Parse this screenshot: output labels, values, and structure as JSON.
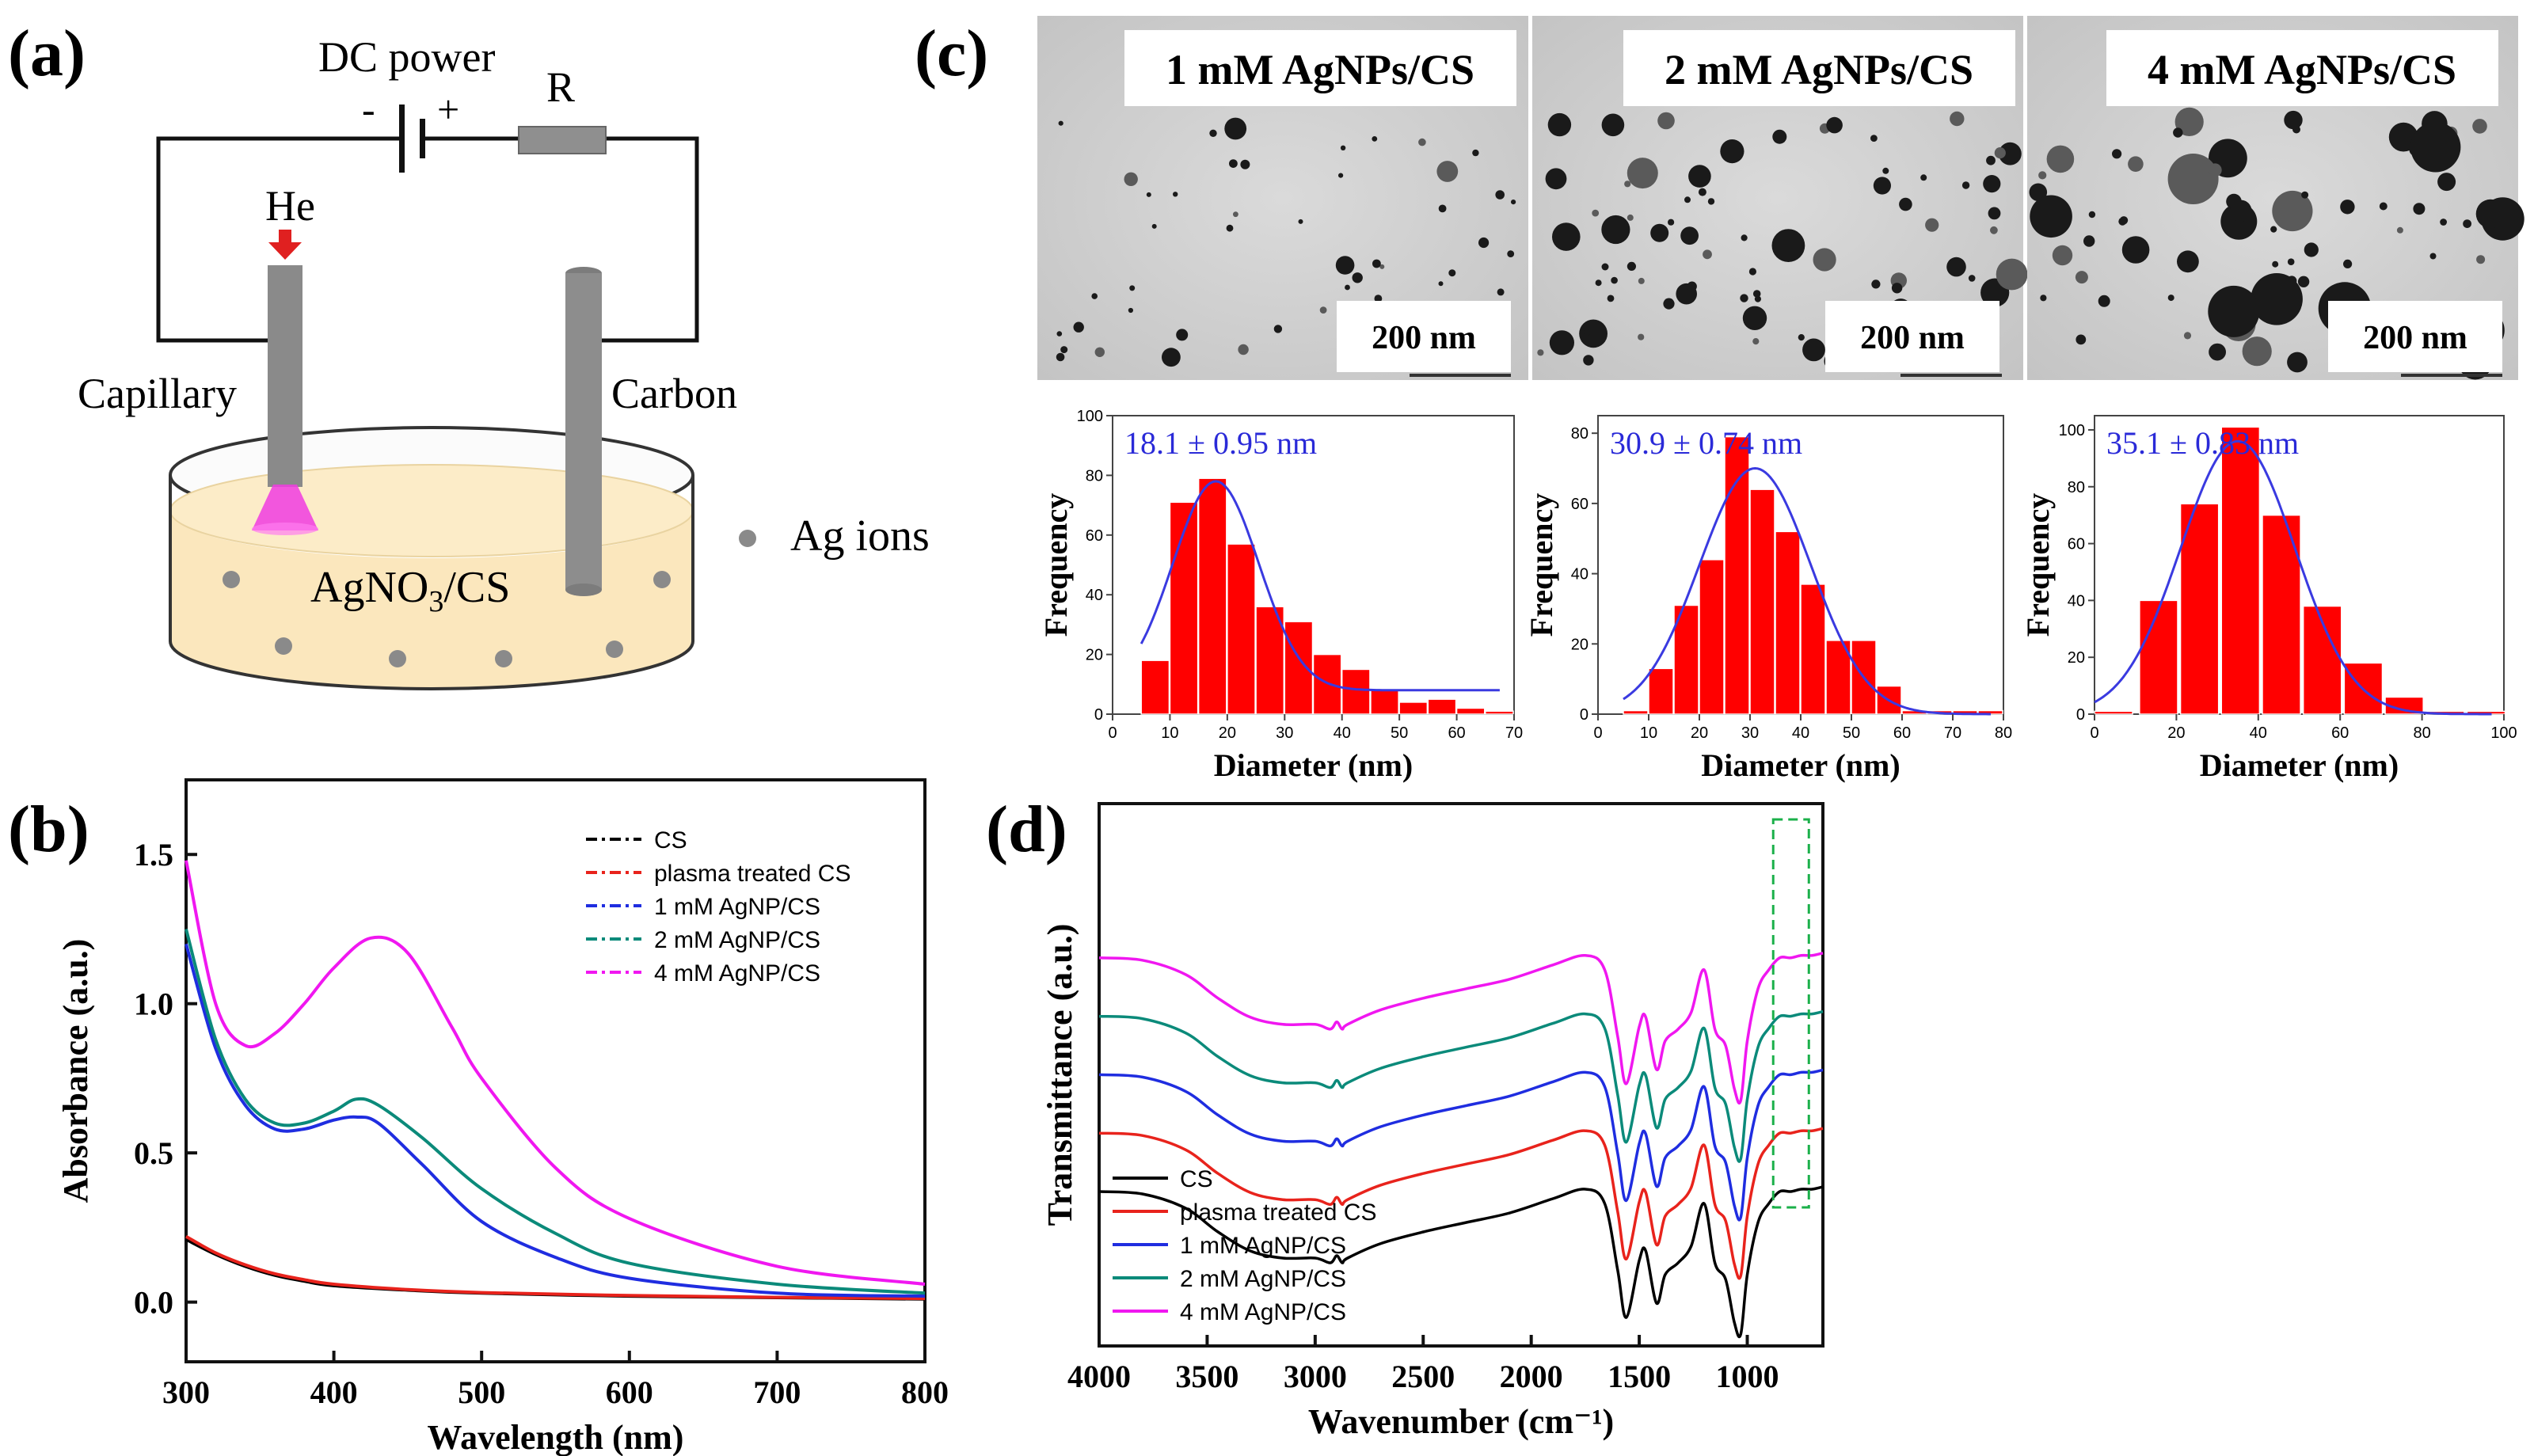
{
  "panels": {
    "a": {
      "label": "(a)",
      "dc_power": "DC power",
      "minus": "-",
      "plus": "+",
      "resistor": "R",
      "gas": "He",
      "capillary": "Capillary",
      "carbon": "Carbon",
      "solution_main": "AgNO",
      "solution_sub": "3",
      "solution_tail": "/CS",
      "ag_ions": "Ag ions"
    },
    "b": {
      "label": "(b)"
    },
    "c": {
      "label": "(c)",
      "tem": [
        {
          "title": "1 mM AgNPs/CS",
          "scale": "200 nm"
        },
        {
          "title": "2 mM AgNPs/CS",
          "scale": "200 nm"
        },
        {
          "title": "4 mM AgNPs/CS",
          "scale": "200 nm"
        }
      ]
    },
    "d": {
      "label": "(d)"
    }
  },
  "colors": {
    "cs": "#000000",
    "plasma": "#e8231c",
    "one_mm": "#1f2de0",
    "two_mm": "#0b8a7a",
    "four_mm": "#f017f0",
    "bar": "#ff0000",
    "fit": "#3a3ae0",
    "box": "#1bb04a",
    "stat": "#2a2ad8"
  },
  "chart_data": [
    {
      "id": "uvvis",
      "type": "line",
      "xlabel": "Wavelength (nm)",
      "ylabel": "Absorbance (a.u.)",
      "xlim": [
        300,
        800
      ],
      "ylim": [
        -0.2,
        1.75
      ],
      "xticks": [
        "300",
        "400",
        "500",
        "600",
        "700",
        "800"
      ],
      "yticks": [
        "0.0",
        "0.5",
        "1.0",
        "1.5"
      ],
      "legend": "top-right",
      "series": [
        {
          "name": "CS",
          "color_key": "cs",
          "x": [
            300,
            320,
            340,
            360,
            380,
            400,
            450,
            500,
            600,
            700,
            800
          ],
          "y": [
            0.21,
            0.16,
            0.12,
            0.09,
            0.07,
            0.055,
            0.04,
            0.03,
            0.02,
            0.015,
            0.01
          ]
        },
        {
          "name": "plasma treated CS",
          "color_key": "plasma",
          "x": [
            300,
            320,
            340,
            360,
            380,
            400,
            450,
            500,
            600,
            700,
            800
          ],
          "y": [
            0.22,
            0.165,
            0.125,
            0.095,
            0.075,
            0.06,
            0.042,
            0.032,
            0.022,
            0.016,
            0.012
          ]
        },
        {
          "name": "1 mM AgNP/CS",
          "color_key": "one_mm",
          "x": [
            300,
            320,
            340,
            360,
            380,
            400,
            415,
            430,
            460,
            500,
            550,
            600,
            700,
            800
          ],
          "y": [
            1.2,
            0.85,
            0.66,
            0.58,
            0.58,
            0.61,
            0.62,
            0.6,
            0.46,
            0.27,
            0.15,
            0.08,
            0.03,
            0.02
          ]
        },
        {
          "name": "2 mM AgNP/CS",
          "color_key": "two_mm",
          "x": [
            300,
            320,
            340,
            360,
            380,
            400,
            415,
            430,
            460,
            500,
            550,
            600,
            700,
            800
          ],
          "y": [
            1.25,
            0.88,
            0.68,
            0.6,
            0.6,
            0.64,
            0.68,
            0.66,
            0.55,
            0.38,
            0.23,
            0.13,
            0.06,
            0.03
          ]
        },
        {
          "name": "4 mM AgNP/CS",
          "color_key": "four_mm",
          "x": [
            300,
            320,
            340,
            360,
            380,
            400,
            425,
            450,
            480,
            500,
            550,
            600,
            700,
            800
          ],
          "y": [
            1.48,
            1.0,
            0.86,
            0.9,
            1.0,
            1.12,
            1.22,
            1.17,
            0.92,
            0.75,
            0.45,
            0.28,
            0.12,
            0.06
          ]
        }
      ]
    },
    {
      "id": "hist-1mm",
      "type": "bar",
      "stat": "18.1 ± 0.95 nm",
      "xlabel": "Diameter (nm)",
      "ylabel": "Frequency",
      "xlim": [
        0,
        70
      ],
      "ylim": [
        0,
        100
      ],
      "xticks": [
        "0",
        "10",
        "20",
        "30",
        "40",
        "50",
        "60",
        "70"
      ],
      "yticks": [
        "0",
        "20",
        "40",
        "60",
        "80",
        "100"
      ],
      "bin_width": 5,
      "bin_starts": [
        5,
        10,
        15,
        20,
        25,
        30,
        35,
        40,
        45,
        50,
        55,
        60,
        65
      ],
      "values": [
        18,
        71,
        79,
        57,
        36,
        31,
        20,
        15,
        8,
        4,
        5,
        2,
        1
      ],
      "fit_mean": 18,
      "fit_peak": 78,
      "fit_sigma": 7.5,
      "fit_baseline": 8
    },
    {
      "id": "hist-2mm",
      "type": "bar",
      "stat": "30.9 ± 0.74 nm",
      "xlabel": "Diameter (nm)",
      "ylabel": "Frequency",
      "xlim": [
        0,
        80
      ],
      "ylim": [
        0,
        85
      ],
      "xticks": [
        "0",
        "10",
        "20",
        "30",
        "40",
        "50",
        "60",
        "70",
        "80"
      ],
      "yticks": [
        "0",
        "20",
        "40",
        "60",
        "80"
      ],
      "bin_width": 5,
      "bin_starts": [
        5,
        10,
        15,
        20,
        25,
        30,
        35,
        40,
        45,
        50,
        55,
        60,
        65,
        70,
        75
      ],
      "values": [
        1,
        13,
        31,
        44,
        79,
        64,
        52,
        37,
        21,
        21,
        8,
        1,
        1,
        1,
        1
      ],
      "fit_mean": 31,
      "fit_peak": 70,
      "fit_sigma": 11,
      "fit_baseline": 0
    },
    {
      "id": "hist-4mm",
      "type": "bar",
      "stat": "35.1 ± 0.83 nm",
      "xlabel": "Diameter (nm)",
      "ylabel": "Frequency",
      "xlim": [
        0,
        100
      ],
      "ylim": [
        0,
        105
      ],
      "xticks": [
        "0",
        "20",
        "40",
        "60",
        "80",
        "100"
      ],
      "yticks": [
        "0",
        "20",
        "40",
        "60",
        "80",
        "100"
      ],
      "bin_width": 9.5,
      "bin_starts": [
        0,
        11,
        21,
        31,
        41,
        51,
        61,
        71,
        81,
        91
      ],
      "values": [
        1,
        40,
        74,
        101,
        70,
        38,
        18,
        6,
        1,
        1
      ],
      "fit_mean": 35,
      "fit_peak": 96,
      "fit_sigma": 14,
      "fit_baseline": 0
    },
    {
      "id": "ftir",
      "type": "line",
      "xlabel": "Wavenumber (cm⁻¹)",
      "ylabel": "Transmittance (a.u.)",
      "xlim": [
        4000,
        650
      ],
      "xticks": [
        "4000",
        "3500",
        "3000",
        "2500",
        "2000",
        "1500",
        "1000"
      ],
      "legend": "bottom-left",
      "series": [
        {
          "name": "CS",
          "color_key": "cs",
          "offset": 0
        },
        {
          "name": "plasma treated CS",
          "color_key": "plasma",
          "offset": 0.18
        },
        {
          "name": "1 mM AgNP/CS",
          "color_key": "one_mm",
          "offset": 0.36
        },
        {
          "name": "2 mM AgNP/CS",
          "color_key": "two_mm",
          "offset": 0.54
        },
        {
          "name": "4 mM AgNP/CS",
          "color_key": "four_mm",
          "offset": 0.72
        }
      ],
      "base_profile_x": [
        4000,
        3800,
        3600,
        3450,
        3300,
        3150,
        3000,
        2930,
        2900,
        2875,
        2850,
        2700,
        2500,
        2300,
        2100,
        1900,
        1750,
        1660,
        1600,
        1560,
        1500,
        1470,
        1420,
        1380,
        1320,
        1260,
        1200,
        1150,
        1100,
        1060,
        1030,
        1000,
        950,
        900,
        850,
        800,
        750,
        700,
        650
      ],
      "base_profile_y": [
        0.55,
        0.54,
        0.48,
        0.38,
        0.3,
        0.27,
        0.27,
        0.25,
        0.28,
        0.25,
        0.27,
        0.33,
        0.38,
        0.42,
        0.46,
        0.52,
        0.56,
        0.5,
        0.22,
        0.02,
        0.26,
        0.3,
        0.08,
        0.2,
        0.25,
        0.32,
        0.5,
        0.25,
        0.18,
        0.0,
        -0.05,
        0.2,
        0.42,
        0.5,
        0.55,
        0.55,
        0.56,
        0.56,
        0.57
      ]
    }
  ]
}
